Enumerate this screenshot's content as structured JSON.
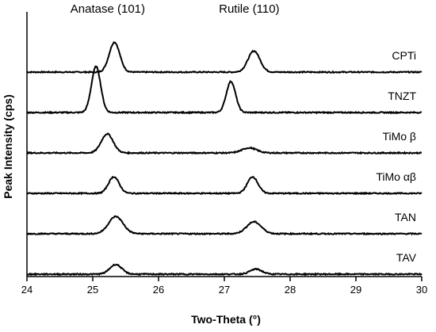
{
  "chart_data": {
    "type": "line",
    "xlabel": "Two-Theta (°)",
    "ylabel": "Peak Intensity (cps)",
    "xlim": [
      24,
      30
    ],
    "xticks": [
      24,
      25,
      26,
      27,
      28,
      29,
      30
    ],
    "tick_labels": [
      "24",
      "25",
      "26",
      "27",
      "28",
      "29",
      "30"
    ],
    "grid": false,
    "stacked_offset": true,
    "annotations": [
      {
        "text": "Anatase (101)",
        "x": 25.3
      },
      {
        "text": "Rutile (110)",
        "x": 27.45
      }
    ],
    "series": [
      {
        "name": "CPTi",
        "baseline": 5,
        "peaks": [
          {
            "x": 25.33,
            "h": 1.3,
            "w": 0.08
          },
          {
            "x": 27.45,
            "h": 0.92,
            "w": 0.09
          }
        ]
      },
      {
        "name": "TNZT",
        "baseline": 4,
        "peaks": [
          {
            "x": 25.05,
            "h": 2.0,
            "w": 0.07
          },
          {
            "x": 27.1,
            "h": 1.35,
            "w": 0.07
          }
        ]
      },
      {
        "name": "TiMo β",
        "baseline": 3,
        "peaks": [
          {
            "x": 25.22,
            "h": 0.83,
            "w": 0.09
          },
          {
            "x": 27.38,
            "h": 0.22,
            "w": 0.11
          }
        ]
      },
      {
        "name": "TiMo αβ",
        "baseline": 2,
        "peaks": [
          {
            "x": 25.32,
            "h": 0.72,
            "w": 0.08
          },
          {
            "x": 27.43,
            "h": 0.72,
            "w": 0.08
          }
        ]
      },
      {
        "name": "TAN",
        "baseline": 1,
        "peaks": [
          {
            "x": 25.35,
            "h": 0.75,
            "w": 0.11
          },
          {
            "x": 27.45,
            "h": 0.52,
            "w": 0.11
          }
        ]
      },
      {
        "name": "TAV",
        "baseline": 0,
        "peaks": [
          {
            "x": 25.35,
            "h": 0.42,
            "w": 0.09
          },
          {
            "x": 27.48,
            "h": 0.22,
            "w": 0.09
          }
        ]
      }
    ]
  }
}
